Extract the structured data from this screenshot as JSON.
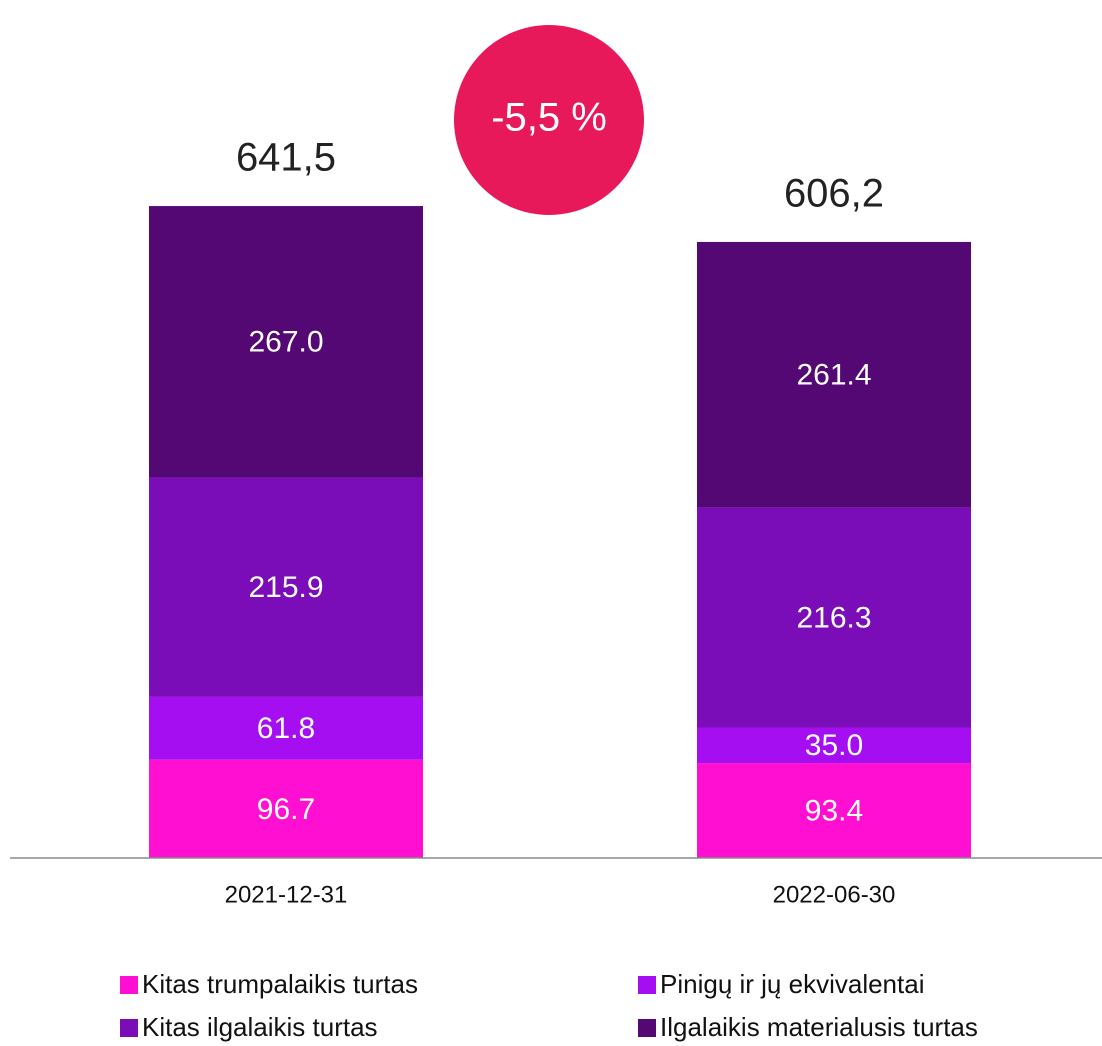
{
  "chart_data": {
    "type": "stacked_bar",
    "categories": [
      "2021-12-31",
      "2022-06-30"
    ],
    "series": [
      {
        "name": "Kitas trumpalaikis turtas",
        "color": "#ff0fd2",
        "values": [
          96.7,
          93.4
        ],
        "value_labels": [
          "96.7",
          "93.4"
        ]
      },
      {
        "name": "Pinigų ir jų ekvivalentai",
        "color": "#a50ef0",
        "values": [
          61.8,
          35.0
        ],
        "value_labels": [
          "61.8",
          "35.0"
        ]
      },
      {
        "name": "Kitas ilgalaikis turtas",
        "color": "#7b0db8",
        "values": [
          215.9,
          216.3
        ],
        "value_labels": [
          "215.9",
          "216.3"
        ]
      },
      {
        "name": "Ilgalaikis materialusis turtas",
        "color": "#530874",
        "values": [
          267.0,
          261.4
        ],
        "value_labels": [
          "267.0",
          "261.4"
        ]
      }
    ],
    "totals": [
      "641,5",
      "606,2"
    ],
    "change_label": "-5,5 %",
    "ylim": [
      0,
      700
    ]
  }
}
